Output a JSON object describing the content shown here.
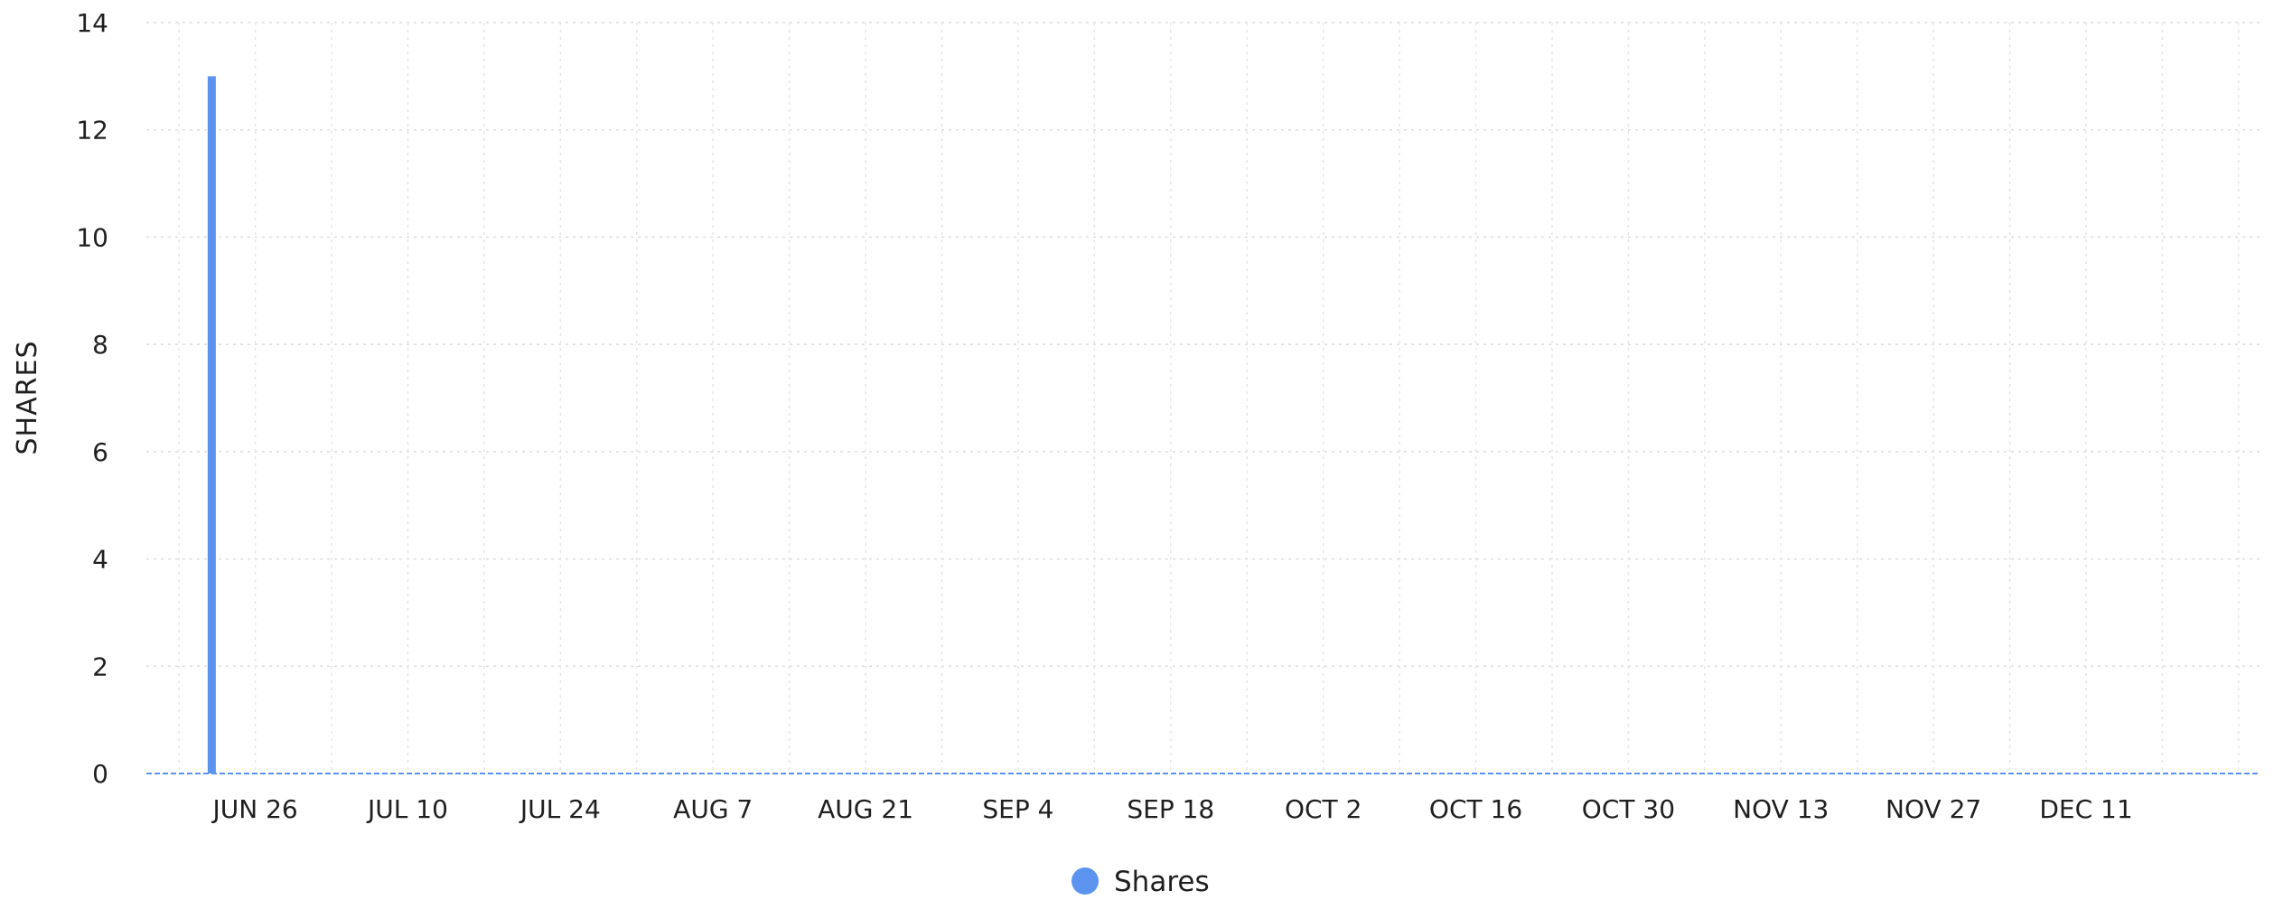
{
  "chart_data": {
    "type": "bar",
    "title": "",
    "xlabel": "",
    "ylabel": "SHARES",
    "ylim": [
      0,
      14
    ],
    "yticks": [
      0,
      2,
      4,
      6,
      8,
      10,
      12,
      14
    ],
    "grid": true,
    "legend_position": "bottom-center",
    "xlim": [
      "2023-06-16",
      "2023-12-27"
    ],
    "x_tick_labels": [
      "JUN 26",
      "JUL 10",
      "JUL 24",
      "AUG 7",
      "AUG 21",
      "SEP 4",
      "SEP 18",
      "OCT 2",
      "OCT 16",
      "OCT 30",
      "NOV 13",
      "NOV 27",
      "DEC 11"
    ],
    "x_tick_dates": [
      "2023-06-26",
      "2023-07-10",
      "2023-07-24",
      "2023-08-07",
      "2023-08-21",
      "2023-09-04",
      "2023-09-18",
      "2023-10-02",
      "2023-10-16",
      "2023-10-30",
      "2023-11-13",
      "2023-11-27",
      "2023-12-11"
    ],
    "series": [
      {
        "name": "Shares",
        "color": "#5b93ee",
        "x": [
          "2023-06-22"
        ],
        "values": [
          13
        ]
      }
    ]
  }
}
